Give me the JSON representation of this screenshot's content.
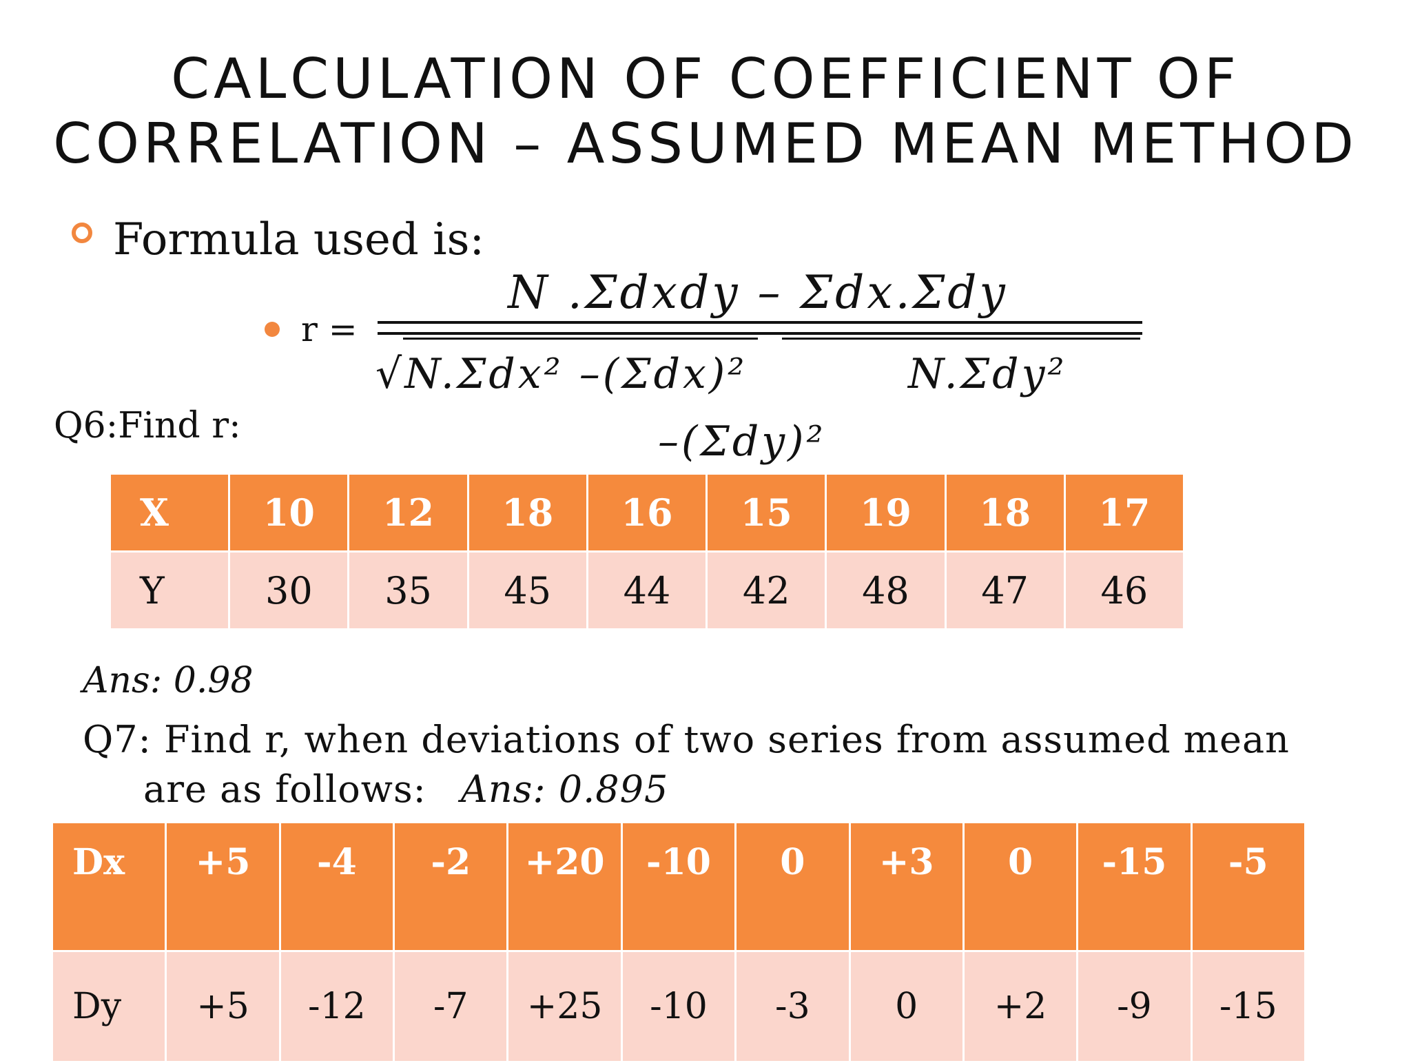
{
  "title": {
    "line1": "CALCULATION OF COEFFICIENT OF",
    "line2": "CORRELATION – ASSUMED MEAN METHOD"
  },
  "formula": {
    "heading": "Formula used is:",
    "r_label": "r =",
    "numerator": "N .Σdxdy – Σdx.Σdy",
    "denominator_part1": "√N.Σdx² –(Σdx)²",
    "denominator_part2": "N.Σdy²",
    "denominator_part3": "–(Σdy)²"
  },
  "q6": {
    "question": "Q6:Find r:",
    "header_row": [
      "X",
      "10",
      "12",
      "18",
      "16",
      "15",
      "19",
      "18",
      "17"
    ],
    "body_row": [
      "Y",
      "30",
      "35",
      "45",
      "44",
      "42",
      "48",
      "47",
      "46"
    ],
    "answer": "Ans: 0.98"
  },
  "q7": {
    "question_line1": "Q7: Find r, when deviations of two series from assumed mean",
    "question_line2": "are as follows:",
    "answer": "Ans: 0.895",
    "header_row": [
      "Dx",
      "+5",
      "-4",
      "-2",
      "+20",
      "-10",
      "0",
      "+3",
      "0",
      "-15",
      "-5"
    ],
    "body_row": [
      "Dy",
      "+5",
      "-12",
      "-7",
      "+25",
      "-10",
      "-3",
      "0",
      "+2",
      "-9",
      "-15"
    ]
  },
  "colors": {
    "accent": "#f58a3d",
    "table_body": "#fbd6cc"
  }
}
